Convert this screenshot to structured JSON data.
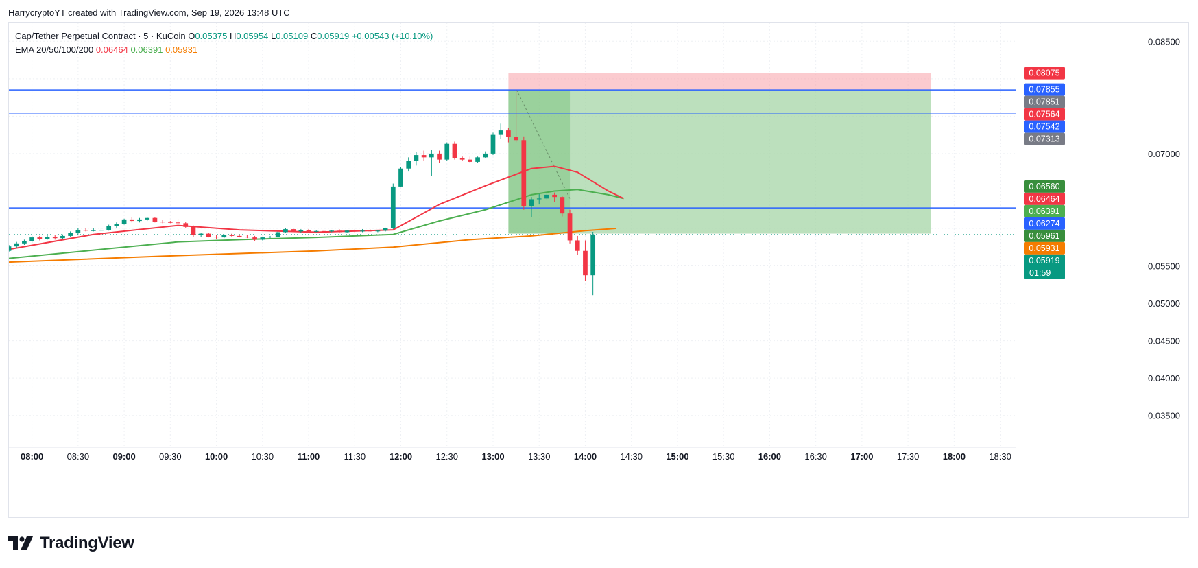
{
  "header": {
    "credit": "HarrycryptoYT created with TradingView.com, Sep 19, 2026 13:48 UTC"
  },
  "legend": {
    "symbol": "Cap/Tether Perpetual Contract · 5 · KuCoin",
    "o_label": "O",
    "o": "0.05375",
    "h_label": "H",
    "h": "0.05954",
    "l_label": "L",
    "l": "0.05109",
    "c_label": "C",
    "c": "0.05919",
    "change": "+0.00543 (+10.10%)",
    "ema_label": "EMA 20/50/100/200",
    "ema20": "0.06464",
    "ema50": "0.06391",
    "ema200": "0.05931"
  },
  "brand": {
    "name": "TradingView"
  },
  "colors": {
    "up": "#089981",
    "down": "#f23645",
    "ema20": "#f23645",
    "ema50": "#4caf50",
    "ema200": "#f57c00",
    "hline": "#2962ff",
    "stop_zone": "#f7a1a8",
    "target_zone": "#a5d6a7"
  },
  "chart_data": {
    "type": "candlestick",
    "interval_minutes": 5,
    "y_axis": {
      "min": 0.0325,
      "max": 0.0875,
      "ticks": [
        {
          "value": 0.085,
          "label": "0.08500"
        },
        {
          "value": 0.07,
          "label": "0.07000"
        },
        {
          "value": 0.055,
          "label": "0.05500"
        },
        {
          "value": 0.05,
          "label": "0.05000"
        },
        {
          "value": 0.045,
          "label": "0.04500"
        },
        {
          "value": 0.04,
          "label": "0.04000"
        },
        {
          "value": 0.035,
          "label": "0.03500"
        }
      ]
    },
    "x_axis": {
      "start": "07:45",
      "end": "18:40",
      "ticks": [
        {
          "time": "08:00",
          "label": "08:00",
          "bold": true
        },
        {
          "time": "08:30",
          "label": "08:30",
          "bold": false
        },
        {
          "time": "09:00",
          "label": "09:00",
          "bold": true
        },
        {
          "time": "09:30",
          "label": "09:30",
          "bold": false
        },
        {
          "time": "10:00",
          "label": "10:00",
          "bold": true
        },
        {
          "time": "10:30",
          "label": "10:30",
          "bold": false
        },
        {
          "time": "11:00",
          "label": "11:00",
          "bold": true
        },
        {
          "time": "11:30",
          "label": "11:30",
          "bold": false
        },
        {
          "time": "12:00",
          "label": "12:00",
          "bold": true
        },
        {
          "time": "12:30",
          "label": "12:30",
          "bold": false
        },
        {
          "time": "13:00",
          "label": "13:00",
          "bold": true
        },
        {
          "time": "13:30",
          "label": "13:30",
          "bold": false
        },
        {
          "time": "14:00",
          "label": "14:00",
          "bold": true
        },
        {
          "time": "14:30",
          "label": "14:30",
          "bold": false
        },
        {
          "time": "15:00",
          "label": "15:00",
          "bold": true
        },
        {
          "time": "15:30",
          "label": "15:30",
          "bold": false
        },
        {
          "time": "16:00",
          "label": "16:00",
          "bold": true
        },
        {
          "time": "16:30",
          "label": "16:30",
          "bold": false
        },
        {
          "time": "17:00",
          "label": "17:00",
          "bold": true
        },
        {
          "time": "17:30",
          "label": "17:30",
          "bold": false
        },
        {
          "time": "18:00",
          "label": "18:00",
          "bold": true
        },
        {
          "time": "18:30",
          "label": "18:30",
          "bold": false
        }
      ]
    },
    "candles": [
      {
        "t": "07:45",
        "o": 0.057,
        "h": 0.0578,
        "l": 0.0568,
        "c": 0.0576
      },
      {
        "t": "07:50",
        "o": 0.0576,
        "h": 0.0582,
        "l": 0.0574,
        "c": 0.058
      },
      {
        "t": "07:55",
        "o": 0.058,
        "h": 0.0585,
        "l": 0.0578,
        "c": 0.0583
      },
      {
        "t": "08:00",
        "o": 0.0583,
        "h": 0.059,
        "l": 0.0581,
        "c": 0.0588
      },
      {
        "t": "08:05",
        "o": 0.0588,
        "h": 0.059,
        "l": 0.0584,
        "c": 0.0586
      },
      {
        "t": "08:10",
        "o": 0.0586,
        "h": 0.0591,
        "l": 0.0585,
        "c": 0.0589
      },
      {
        "t": "08:15",
        "o": 0.0589,
        "h": 0.0591,
        "l": 0.0585,
        "c": 0.0587
      },
      {
        "t": "08:20",
        "o": 0.0587,
        "h": 0.0592,
        "l": 0.0586,
        "c": 0.059
      },
      {
        "t": "08:25",
        "o": 0.059,
        "h": 0.0596,
        "l": 0.0589,
        "c": 0.0594
      },
      {
        "t": "08:30",
        "o": 0.0594,
        "h": 0.06,
        "l": 0.0592,
        "c": 0.0598
      },
      {
        "t": "08:35",
        "o": 0.0598,
        "h": 0.06,
        "l": 0.0596,
        "c": 0.0597
      },
      {
        "t": "08:40",
        "o": 0.0597,
        "h": 0.06,
        "l": 0.0596,
        "c": 0.05975
      },
      {
        "t": "08:45",
        "o": 0.05975,
        "h": 0.0601,
        "l": 0.0596,
        "c": 0.0598
      },
      {
        "t": "08:50",
        "o": 0.0598,
        "h": 0.0605,
        "l": 0.0597,
        "c": 0.0603
      },
      {
        "t": "08:55",
        "o": 0.0603,
        "h": 0.0608,
        "l": 0.0601,
        "c": 0.0606
      },
      {
        "t": "09:00",
        "o": 0.0606,
        "h": 0.0613,
        "l": 0.0605,
        "c": 0.0612
      },
      {
        "t": "09:05",
        "o": 0.0612,
        "h": 0.0615,
        "l": 0.0608,
        "c": 0.061
      },
      {
        "t": "09:10",
        "o": 0.061,
        "h": 0.0614,
        "l": 0.0608,
        "c": 0.0612
      },
      {
        "t": "09:15",
        "o": 0.0612,
        "h": 0.0615,
        "l": 0.061,
        "c": 0.0614
      },
      {
        "t": "09:20",
        "o": 0.0614,
        "h": 0.0615,
        "l": 0.0608,
        "c": 0.0609
      },
      {
        "t": "09:25",
        "o": 0.0609,
        "h": 0.0611,
        "l": 0.0607,
        "c": 0.06085
      },
      {
        "t": "09:30",
        "o": 0.06085,
        "h": 0.061,
        "l": 0.0607,
        "c": 0.0608
      },
      {
        "t": "09:35",
        "o": 0.0608,
        "h": 0.0613,
        "l": 0.0606,
        "c": 0.0607
      },
      {
        "t": "09:40",
        "o": 0.0607,
        "h": 0.0609,
        "l": 0.0601,
        "c": 0.0602
      },
      {
        "t": "09:45",
        "o": 0.0602,
        "h": 0.0604,
        "l": 0.0589,
        "c": 0.0591
      },
      {
        "t": "09:50",
        "o": 0.0591,
        "h": 0.0594,
        "l": 0.0589,
        "c": 0.0593
      },
      {
        "t": "09:55",
        "o": 0.0593,
        "h": 0.0594,
        "l": 0.0588,
        "c": 0.0589
      },
      {
        "t": "10:00",
        "o": 0.0589,
        "h": 0.0591,
        "l": 0.0586,
        "c": 0.0588
      },
      {
        "t": "10:05",
        "o": 0.0588,
        "h": 0.0592,
        "l": 0.0587,
        "c": 0.0591
      },
      {
        "t": "10:10",
        "o": 0.0591,
        "h": 0.0593,
        "l": 0.0589,
        "c": 0.059
      },
      {
        "t": "10:15",
        "o": 0.059,
        "h": 0.0592,
        "l": 0.0588,
        "c": 0.0589
      },
      {
        "t": "10:20",
        "o": 0.0589,
        "h": 0.0591,
        "l": 0.0587,
        "c": 0.0588
      },
      {
        "t": "10:25",
        "o": 0.0588,
        "h": 0.059,
        "l": 0.0583,
        "c": 0.0585
      },
      {
        "t": "10:30",
        "o": 0.0585,
        "h": 0.0589,
        "l": 0.0584,
        "c": 0.0588
      },
      {
        "t": "10:35",
        "o": 0.0588,
        "h": 0.059,
        "l": 0.0587,
        "c": 0.0589
      },
      {
        "t": "10:40",
        "o": 0.0589,
        "h": 0.0596,
        "l": 0.0588,
        "c": 0.0595
      },
      {
        "t": "10:45",
        "o": 0.0595,
        "h": 0.06,
        "l": 0.0594,
        "c": 0.0599
      },
      {
        "t": "10:50",
        "o": 0.0599,
        "h": 0.06,
        "l": 0.0595,
        "c": 0.0596
      },
      {
        "t": "10:55",
        "o": 0.0596,
        "h": 0.0599,
        "l": 0.0594,
        "c": 0.0598
      },
      {
        "t": "11:00",
        "o": 0.0598,
        "h": 0.0599,
        "l": 0.0595,
        "c": 0.0596
      },
      {
        "t": "11:05",
        "o": 0.0596,
        "h": 0.0598,
        "l": 0.0595,
        "c": 0.05965
      },
      {
        "t": "11:10",
        "o": 0.05965,
        "h": 0.0598,
        "l": 0.0595,
        "c": 0.0596
      },
      {
        "t": "11:15",
        "o": 0.0596,
        "h": 0.0598,
        "l": 0.0595,
        "c": 0.0597
      },
      {
        "t": "11:20",
        "o": 0.0597,
        "h": 0.0599,
        "l": 0.0594,
        "c": 0.0595
      },
      {
        "t": "11:25",
        "o": 0.0595,
        "h": 0.0598,
        "l": 0.0594,
        "c": 0.0597
      },
      {
        "t": "11:30",
        "o": 0.0597,
        "h": 0.05985,
        "l": 0.0595,
        "c": 0.0596
      },
      {
        "t": "11:35",
        "o": 0.0596,
        "h": 0.0599,
        "l": 0.0595,
        "c": 0.0597
      },
      {
        "t": "11:40",
        "o": 0.0597,
        "h": 0.0599,
        "l": 0.05955,
        "c": 0.05965
      },
      {
        "t": "11:45",
        "o": 0.05965,
        "h": 0.0598,
        "l": 0.0595,
        "c": 0.0597
      },
      {
        "t": "11:50",
        "o": 0.0597,
        "h": 0.0601,
        "l": 0.0596,
        "c": 0.06
      },
      {
        "t": "11:55",
        "o": 0.06,
        "h": 0.066,
        "l": 0.0599,
        "c": 0.0656
      },
      {
        "t": "12:00",
        "o": 0.0656,
        "h": 0.0682,
        "l": 0.0655,
        "c": 0.068
      },
      {
        "t": "12:05",
        "o": 0.068,
        "h": 0.0695,
        "l": 0.0676,
        "c": 0.069
      },
      {
        "t": "12:10",
        "o": 0.069,
        "h": 0.0702,
        "l": 0.0684,
        "c": 0.0698
      },
      {
        "t": "12:15",
        "o": 0.0698,
        "h": 0.0704,
        "l": 0.069,
        "c": 0.0695
      },
      {
        "t": "12:20",
        "o": 0.0695,
        "h": 0.0705,
        "l": 0.067,
        "c": 0.07
      },
      {
        "t": "12:25",
        "o": 0.07,
        "h": 0.0704,
        "l": 0.0688,
        "c": 0.0692
      },
      {
        "t": "12:30",
        "o": 0.0692,
        "h": 0.0715,
        "l": 0.069,
        "c": 0.0713
      },
      {
        "t": "12:35",
        "o": 0.0713,
        "h": 0.0716,
        "l": 0.0692,
        "c": 0.0694
      },
      {
        "t": "12:40",
        "o": 0.0694,
        "h": 0.0696,
        "l": 0.069,
        "c": 0.0692
      },
      {
        "t": "12:45",
        "o": 0.0692,
        "h": 0.0696,
        "l": 0.0688,
        "c": 0.0689
      },
      {
        "t": "12:50",
        "o": 0.0689,
        "h": 0.0696,
        "l": 0.0688,
        "c": 0.0695
      },
      {
        "t": "12:55",
        "o": 0.0695,
        "h": 0.0703,
        "l": 0.0694,
        "c": 0.07
      },
      {
        "t": "13:00",
        "o": 0.07,
        "h": 0.0728,
        "l": 0.0698,
        "c": 0.0725
      },
      {
        "t": "13:05",
        "o": 0.0725,
        "h": 0.074,
        "l": 0.072,
        "c": 0.0731
      },
      {
        "t": "13:10",
        "o": 0.0731,
        "h": 0.0734,
        "l": 0.0715,
        "c": 0.0722
      },
      {
        "t": "13:15",
        "o": 0.0722,
        "h": 0.07855,
        "l": 0.0715,
        "c": 0.0718
      },
      {
        "t": "13:20",
        "o": 0.0718,
        "h": 0.0723,
        "l": 0.0625,
        "c": 0.063
      },
      {
        "t": "13:25",
        "o": 0.063,
        "h": 0.0642,
        "l": 0.0615,
        "c": 0.0639
      },
      {
        "t": "13:30",
        "o": 0.0639,
        "h": 0.0646,
        "l": 0.0632,
        "c": 0.064
      },
      {
        "t": "13:35",
        "o": 0.064,
        "h": 0.0648,
        "l": 0.0638,
        "c": 0.0645
      },
      {
        "t": "13:40",
        "o": 0.0645,
        "h": 0.0648,
        "l": 0.0635,
        "c": 0.0642
      },
      {
        "t": "13:45",
        "o": 0.0642,
        "h": 0.0644,
        "l": 0.0616,
        "c": 0.062
      },
      {
        "t": "13:50",
        "o": 0.062,
        "h": 0.0625,
        "l": 0.058,
        "c": 0.0584
      },
      {
        "t": "13:55",
        "o": 0.0584,
        "h": 0.059,
        "l": 0.0565,
        "c": 0.057
      },
      {
        "t": "14:00",
        "o": 0.057,
        "h": 0.0584,
        "l": 0.053,
        "c": 0.05375
      },
      {
        "t": "14:05",
        "o": 0.05375,
        "h": 0.05954,
        "l": 0.05109,
        "c": 0.05919
      }
    ],
    "ema20": [
      [
        0,
        0.0572
      ],
      [
        11,
        0.0592
      ],
      [
        22,
        0.0604
      ],
      [
        30,
        0.0598
      ],
      [
        40,
        0.0595
      ],
      [
        50,
        0.0598
      ],
      [
        56,
        0.0632
      ],
      [
        62,
        0.0657
      ],
      [
        68,
        0.068
      ],
      [
        71,
        0.0683
      ],
      [
        74,
        0.0675
      ],
      [
        78,
        0.065
      ],
      [
        80,
        0.064
      ]
    ],
    "ema50": [
      [
        0,
        0.056
      ],
      [
        10,
        0.057
      ],
      [
        22,
        0.0582
      ],
      [
        30,
        0.0585
      ],
      [
        40,
        0.0588
      ],
      [
        50,
        0.0592
      ],
      [
        56,
        0.061
      ],
      [
        62,
        0.0625
      ],
      [
        68,
        0.0645
      ],
      [
        71,
        0.065
      ],
      [
        74,
        0.0652
      ],
      [
        78,
        0.0645
      ],
      [
        80,
        0.064
      ]
    ],
    "ema200": [
      [
        0,
        0.0555
      ],
      [
        20,
        0.0563
      ],
      [
        40,
        0.057
      ],
      [
        50,
        0.0575
      ],
      [
        60,
        0.0585
      ],
      [
        68,
        0.059
      ],
      [
        75,
        0.0597
      ],
      [
        79,
        0.06
      ]
    ],
    "horizontal_lines": [
      0.07851,
      0.07542,
      0.06274
    ],
    "position": {
      "start": "13:10",
      "end": "17:45",
      "entry": 0.05931,
      "stop": 0.08075,
      "target_top": 0.07851,
      "active_box_end": "13:50"
    },
    "price_labels": [
      {
        "value": 0.08075,
        "label": "0.08075",
        "color": "#f23645"
      },
      {
        "value": 0.07855,
        "label": "0.07855",
        "color": "#2962ff"
      },
      {
        "value": 0.07851,
        "label": "0.07851",
        "color": "#787b86"
      },
      {
        "value": 0.07564,
        "label": "0.07564",
        "color": "#f23645"
      },
      {
        "value": 0.07542,
        "label": "0.07542",
        "color": "#2962ff"
      },
      {
        "value": 0.07313,
        "label": "0.07313",
        "color": "#787b86"
      },
      {
        "value": 0.0656,
        "label": "0.06560",
        "color": "#388e3c"
      },
      {
        "value": 0.06464,
        "label": "0.06464",
        "color": "#f23645"
      },
      {
        "value": 0.06391,
        "label": "0.06391",
        "color": "#4caf50"
      },
      {
        "value": 0.06274,
        "label": "0.06274",
        "color": "#2962ff"
      },
      {
        "value": 0.05961,
        "label": "0.05961",
        "color": "#388e3c"
      },
      {
        "value": 0.05931,
        "label": "0.05931",
        "color": "#f57c00"
      },
      {
        "value": 0.05919,
        "label": "0.05919",
        "color": "#089981",
        "countdown": "01:59"
      }
    ]
  }
}
